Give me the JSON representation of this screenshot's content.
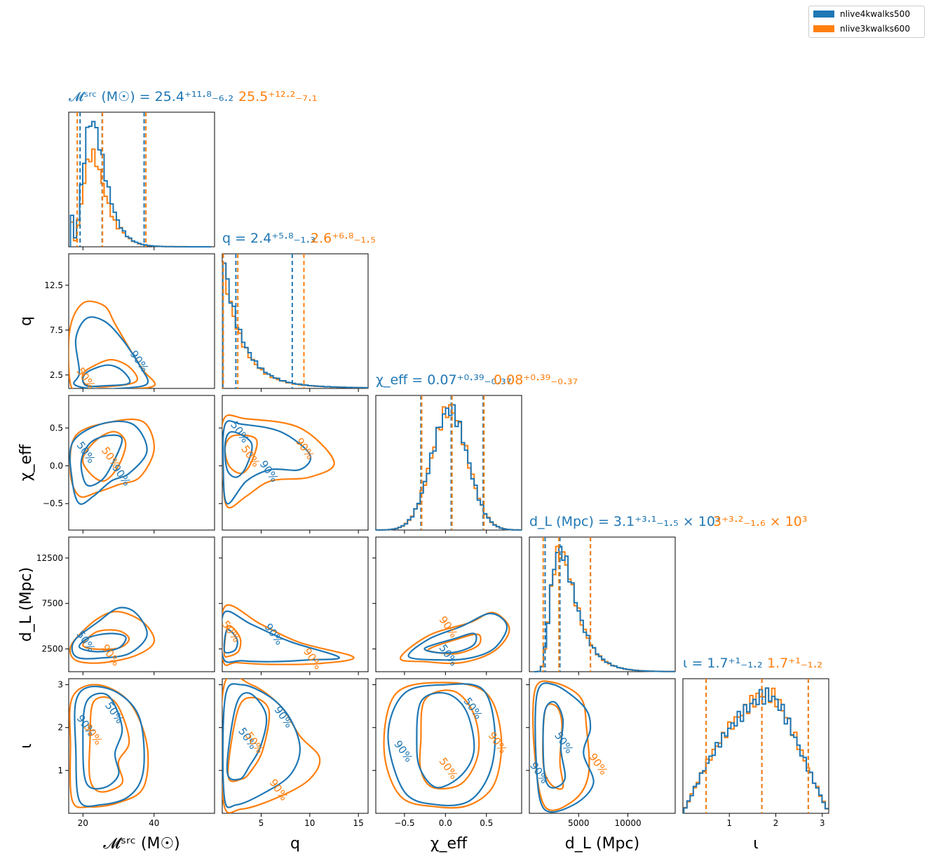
{
  "legend": {
    "items": [
      {
        "label": "nlive4kwalks500",
        "color": "#1f77b4"
      },
      {
        "label": "nlive3kwalks600",
        "color": "#ff7f0e"
      }
    ]
  },
  "colors": {
    "blue": "#1f77b4",
    "orange": "#ff7f0e"
  },
  "chart_data": {
    "type": "corner",
    "series": [
      {
        "name": "nlive4kwalks500",
        "color": "#1f77b4"
      },
      {
        "name": "nlive3kwalks600",
        "color": "#ff7f0e"
      }
    ],
    "parameters": [
      {
        "key": "mc",
        "axis_label": "𝓜ˢʳᶜ (M☉)",
        "range": [
          16,
          57
        ],
        "ticks": [
          20,
          40
        ],
        "tick_labels": [
          "20",
          "40"
        ],
        "title_blue": "𝓜ˢʳᶜ (M☉) = 25.4⁺¹¹·⁸₋₆.₂",
        "title_orange": "25.5⁺¹²·²₋₇.₁",
        "quantiles_blue": [
          19.2,
          25.4,
          37.2
        ],
        "quantiles_orange": [
          18.4,
          25.5,
          37.7
        ]
      },
      {
        "key": "q",
        "axis_label": "q",
        "range": [
          1,
          16
        ],
        "ticks": [
          5,
          10,
          15
        ],
        "tick_labels": [
          "5",
          "10",
          "15"
        ],
        "left_ticks": [
          2.5,
          7.5,
          12.5
        ],
        "left_tick_labels": [
          "2.5",
          "7.5",
          "12.5"
        ],
        "title_blue": "q = 2.4⁺⁵·⁸₋₁.₃",
        "title_orange": "2.6⁺⁶·⁸₋₁.₅",
        "quantiles_blue": [
          1.1,
          2.4,
          8.2
        ],
        "quantiles_orange": [
          1.1,
          2.6,
          9.4
        ]
      },
      {
        "key": "chi",
        "axis_label": "χ_eff",
        "range": [
          -0.85,
          0.93
        ],
        "ticks": [
          -0.5,
          0.0,
          0.5
        ],
        "tick_labels": [
          "−0.5",
          "0.0",
          "0.5"
        ],
        "left_ticks": [
          -0.5,
          0.0,
          0.5
        ],
        "left_tick_labels": [
          "−0.5",
          "0.0",
          "0.5"
        ],
        "title_blue": "χ_eff = 0.07⁺⁰·³⁹₋₀.₃₇",
        "title_orange": "0.08⁺⁰·³⁹₋₀.₃₇",
        "quantiles_blue": [
          -0.3,
          0.07,
          0.46
        ],
        "quantiles_orange": [
          -0.29,
          0.08,
          0.47
        ]
      },
      {
        "key": "dl",
        "axis_label": "d_L (Mpc)",
        "range": [
          0,
          14800
        ],
        "ticks": [
          5000,
          10000
        ],
        "tick_labels": [
          "5000",
          "10000"
        ],
        "left_ticks": [
          2500,
          7500,
          12500
        ],
        "left_tick_labels": [
          "2500",
          "7500",
          "12500"
        ],
        "title_blue": "d_L (Mpc) = 3.1⁺³·¹₋₁.₅ × 10³",
        "title_orange": "3⁺³·²₋₁.₆ × 10³",
        "quantiles_blue": [
          1600,
          3100,
          6200
        ],
        "quantiles_orange": [
          1400,
          3000,
          6200
        ]
      },
      {
        "key": "iota",
        "axis_label": "ι",
        "range": [
          0,
          3.14
        ],
        "ticks": [
          1,
          2,
          3
        ],
        "tick_labels": [
          "1",
          "2",
          "3"
        ],
        "left_ticks": [
          1,
          2,
          3
        ],
        "left_tick_labels": [
          "1",
          "2",
          "3"
        ],
        "title_blue": "ι = 1.7⁺¹₋₁.₂",
        "title_orange": "1.7⁺¹₋₁.₂",
        "quantiles_blue": [
          0.5,
          1.7,
          2.7
        ],
        "quantiles_orange": [
          0.5,
          1.7,
          2.7
        ]
      }
    ],
    "contour_levels": [
      "50%",
      "90%"
    ]
  }
}
